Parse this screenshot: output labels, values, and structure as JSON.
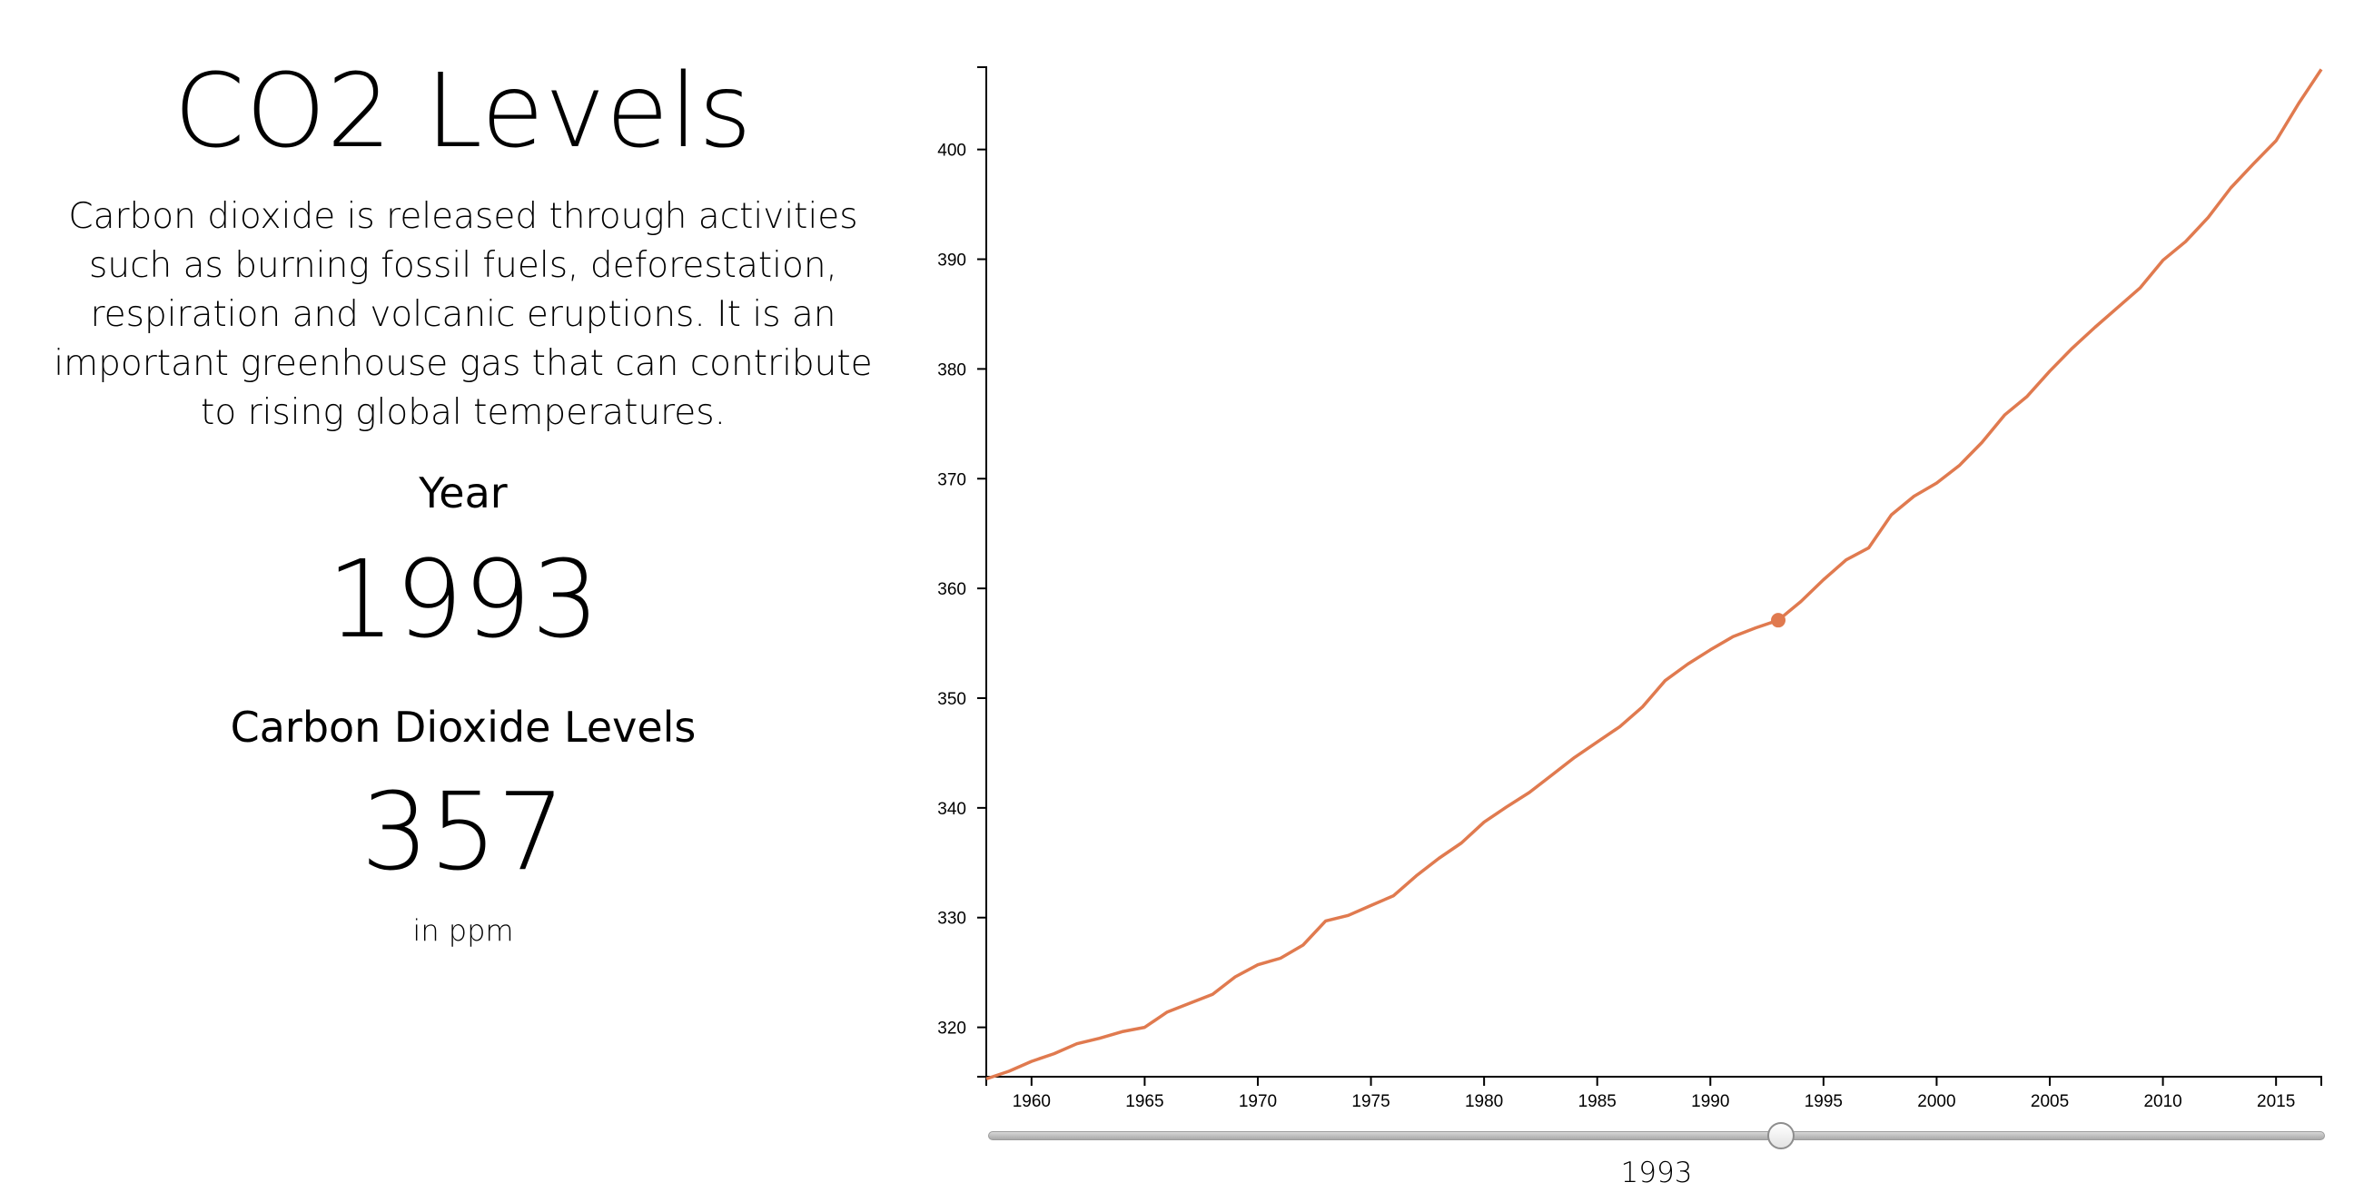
{
  "info": {
    "title": "CO2 Levels",
    "description": "Carbon dioxide is released through activities such as burning fossil fuels, deforestation, respiration and volcanic eruptions. It is an important greenhouse gas that can contribute to rising global temperatures.",
    "year_label": "Year",
    "year_value": "1993",
    "co2_label": "Carbon Dioxide Levels",
    "co2_value": "357",
    "unit": "in ppm"
  },
  "slider": {
    "min": 1958,
    "max": 2017,
    "value": 1993,
    "value_label": "1993"
  },
  "colors": {
    "line": "#e07a4f",
    "axis": "#000000"
  },
  "chart_data": {
    "type": "line",
    "title": "",
    "xlabel": "",
    "ylabel": "",
    "xlim": [
      1958,
      2017
    ],
    "ylim": [
      315.5,
      407.5
    ],
    "x_ticks": [
      1960,
      1965,
      1970,
      1975,
      1980,
      1985,
      1990,
      1995,
      2000,
      2005,
      2010,
      2015
    ],
    "y_ticks": [
      320,
      330,
      340,
      350,
      360,
      370,
      380,
      390,
      400
    ],
    "grid": false,
    "highlight": {
      "x": 1993,
      "y": 357.1
    },
    "series": [
      {
        "x": [
          1958,
          1959,
          1960,
          1961,
          1962,
          1963,
          1964,
          1965,
          1966,
          1967,
          1968,
          1969,
          1970,
          1971,
          1972,
          1973,
          1974,
          1975,
          1976,
          1977,
          1978,
          1979,
          1980,
          1981,
          1982,
          1983,
          1984,
          1985,
          1986,
          1987,
          1988,
          1989,
          1990,
          1991,
          1992,
          1993,
          1994,
          1995,
          1996,
          1997,
          1998,
          1999,
          2000,
          2001,
          2002,
          2003,
          2004,
          2005,
          2006,
          2007,
          2008,
          2009,
          2010,
          2011,
          2012,
          2013,
          2014,
          2015,
          2016,
          2017
        ],
        "y": [
          315.3,
          316.0,
          316.9,
          317.6,
          318.5,
          319.0,
          319.6,
          320.0,
          321.4,
          322.2,
          323.0,
          324.6,
          325.7,
          326.3,
          327.5,
          329.7,
          330.2,
          331.1,
          332.0,
          333.8,
          335.4,
          336.8,
          338.7,
          340.1,
          341.4,
          343.0,
          344.6,
          346.0,
          347.4,
          349.2,
          351.6,
          353.1,
          354.4,
          355.6,
          356.4,
          357.1,
          358.8,
          360.8,
          362.6,
          363.7,
          366.7,
          368.4,
          369.6,
          371.2,
          373.3,
          375.8,
          377.5,
          379.8,
          381.9,
          383.8,
          385.6,
          387.4,
          389.9,
          391.6,
          393.8,
          396.5,
          398.7,
          400.8,
          404.2,
          407.3
        ]
      }
    ]
  }
}
